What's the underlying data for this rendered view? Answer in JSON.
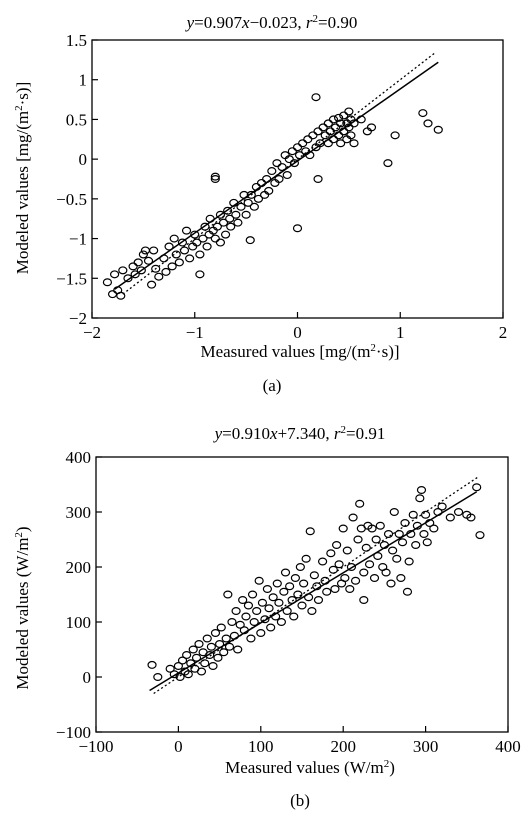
{
  "panels": [
    {
      "equation": {
        "y": "y",
        "eq1": "=0.907",
        "x": "x",
        "eq2": "−0.023,  ",
        "r": "r",
        "r_sup": "2",
        "eq3": "=0.90"
      },
      "ylabel": {
        "main": "Modeled values [mg/(m",
        "sup": "2",
        "rest": "·s)]"
      },
      "xlabel": {
        "main": "Measured values [mg/(m",
        "sup": "2",
        "rest": "·s)]"
      },
      "caption": "(a)"
    },
    {
      "equation": {
        "y": "y",
        "eq1": "=0.910",
        "x": "x",
        "eq2": "+7.340,  ",
        "r": "r",
        "r_sup": "2",
        "eq3": "=0.91"
      },
      "ylabel": {
        "main": "Modeled values (W/m",
        "sup": "2",
        "rest": ")"
      },
      "xlabel": {
        "main": "Measured values (W/m",
        "sup": "2",
        "rest": ")"
      },
      "caption": "(b)"
    }
  ],
  "chart_data": [
    {
      "type": "scatter",
      "xlim": [
        -2,
        2
      ],
      "ylim": [
        -2,
        1.5
      ],
      "x_ticks": [
        -2,
        -1,
        0,
        1,
        2
      ],
      "y_ticks": [
        -2,
        -1.5,
        -1,
        -0.5,
        0,
        0.5,
        1,
        1.5
      ],
      "x_tick_labels": [
        "−2",
        "−1",
        "0",
        "1",
        "2"
      ],
      "y_tick_labels": [
        "−2",
        "−1.5",
        "−1",
        "−0.5",
        "0",
        "0.5",
        "1",
        "1.5"
      ],
      "fit_line": {
        "slope": 0.907,
        "intercept": -0.023,
        "x_range": [
          -1.78,
          1.37
        ],
        "style": "solid"
      },
      "one_to_one_line": {
        "x_range": [
          -1.7,
          1.33
        ],
        "style": "dotted"
      },
      "marker": "open-circle",
      "grid": false,
      "points": [
        [
          -1.85,
          -1.55
        ],
        [
          -1.8,
          -1.7
        ],
        [
          -1.75,
          -1.65
        ],
        [
          -1.78,
          -1.45
        ],
        [
          -1.72,
          -1.72
        ],
        [
          -1.7,
          -1.4
        ],
        [
          -1.65,
          -1.5
        ],
        [
          -1.6,
          -1.35
        ],
        [
          -1.58,
          -1.45
        ],
        [
          -1.55,
          -1.3
        ],
        [
          -1.52,
          -1.4
        ],
        [
          -1.5,
          -1.2
        ],
        [
          -1.48,
          -1.15
        ],
        [
          -1.45,
          -1.28
        ],
        [
          -1.42,
          -1.58
        ],
        [
          -1.4,
          -1.15
        ],
        [
          -1.38,
          -1.38
        ],
        [
          -1.35,
          -1.48
        ],
        [
          -1.3,
          -1.25
        ],
        [
          -1.28,
          -1.42
        ],
        [
          -1.25,
          -1.1
        ],
        [
          -1.22,
          -1.35
        ],
        [
          -1.2,
          -1.0
        ],
        [
          -1.18,
          -1.2
        ],
        [
          -1.15,
          -1.3
        ],
        [
          -1.12,
          -1.05
        ],
        [
          -1.1,
          -1.15
        ],
        [
          -1.08,
          -0.9
        ],
        [
          -1.05,
          -1.25
        ],
        [
          -1.02,
          -1.1
        ],
        [
          -1.0,
          -0.95
        ],
        [
          -0.98,
          -1.05
        ],
        [
          -0.95,
          -1.45
        ],
        [
          -0.95,
          -1.2
        ],
        [
          -0.92,
          -1.0
        ],
        [
          -0.9,
          -0.85
        ],
        [
          -0.88,
          -1.1
        ],
        [
          -0.86,
          -0.95
        ],
        [
          -0.85,
          -0.75
        ],
        [
          -0.82,
          -0.9
        ],
        [
          -0.8,
          -0.25
        ],
        [
          -0.8,
          -0.22
        ],
        [
          -0.8,
          -1.0
        ],
        [
          -0.78,
          -0.85
        ],
        [
          -0.75,
          -0.7
        ],
        [
          -0.75,
          -1.05
        ],
        [
          -0.72,
          -0.8
        ],
        [
          -0.7,
          -0.95
        ],
        [
          -0.68,
          -0.65
        ],
        [
          -0.66,
          -0.75
        ],
        [
          -0.65,
          -0.85
        ],
        [
          -0.62,
          -0.55
        ],
        [
          -0.6,
          -0.7
        ],
        [
          -0.58,
          -0.8
        ],
        [
          -0.55,
          -0.6
        ],
        [
          -0.52,
          -0.45
        ],
        [
          -0.5,
          -0.7
        ],
        [
          -0.48,
          -0.55
        ],
        [
          -0.46,
          -1.02
        ],
        [
          -0.45,
          -0.45
        ],
        [
          -0.42,
          -0.6
        ],
        [
          -0.4,
          -0.35
        ],
        [
          -0.38,
          -0.5
        ],
        [
          -0.35,
          -0.3
        ],
        [
          -0.32,
          -0.45
        ],
        [
          -0.3,
          -0.25
        ],
        [
          -0.28,
          -0.4
        ],
        [
          -0.25,
          -0.15
        ],
        [
          -0.22,
          -0.3
        ],
        [
          -0.2,
          -0.05
        ],
        [
          -0.18,
          -0.25
        ],
        [
          -0.15,
          -0.1
        ],
        [
          -0.12,
          0.05
        ],
        [
          -0.1,
          -0.2
        ],
        [
          -0.08,
          0.0
        ],
        [
          -0.05,
          0.1
        ],
        [
          -0.03,
          -0.05
        ],
        [
          0.0,
          0.15
        ],
        [
          0.0,
          -0.87
        ],
        [
          0.02,
          0.05
        ],
        [
          0.05,
          0.2
        ],
        [
          0.08,
          0.1
        ],
        [
          0.1,
          0.25
        ],
        [
          0.12,
          0.05
        ],
        [
          0.15,
          0.3
        ],
        [
          0.18,
          0.15
        ],
        [
          0.18,
          0.78
        ],
        [
          0.2,
          0.35
        ],
        [
          0.2,
          -0.25
        ],
        [
          0.22,
          0.2
        ],
        [
          0.25,
          0.4
        ],
        [
          0.27,
          0.3
        ],
        [
          0.3,
          0.45
        ],
        [
          0.3,
          0.2
        ],
        [
          0.32,
          0.35
        ],
        [
          0.35,
          0.5
        ],
        [
          0.35,
          0.25
        ],
        [
          0.37,
          0.4
        ],
        [
          0.4,
          0.3
        ],
        [
          0.4,
          0.52
        ],
        [
          0.42,
          0.45
        ],
        [
          0.42,
          0.2
        ],
        [
          0.45,
          0.35
        ],
        [
          0.45,
          0.55
        ],
        [
          0.48,
          0.45
        ],
        [
          0.48,
          0.25
        ],
        [
          0.5,
          0.4
        ],
        [
          0.5,
          0.6
        ],
        [
          0.52,
          0.3
        ],
        [
          0.52,
          0.5
        ],
        [
          0.55,
          0.2
        ],
        [
          0.55,
          0.45
        ],
        [
          0.62,
          0.5
        ],
        [
          0.68,
          0.35
        ],
        [
          0.72,
          0.4
        ],
        [
          0.88,
          -0.05
        ],
        [
          0.95,
          0.3
        ],
        [
          1.22,
          0.58
        ],
        [
          1.27,
          0.45
        ],
        [
          1.37,
          0.37
        ]
      ]
    },
    {
      "type": "scatter",
      "xlim": [
        -100,
        400
      ],
      "ylim": [
        -100,
        400
      ],
      "x_ticks": [
        -100,
        0,
        100,
        200,
        300,
        400
      ],
      "y_ticks": [
        -100,
        0,
        100,
        200,
        300,
        400
      ],
      "x_tick_labels": [
        "−100",
        "0",
        "100",
        "200",
        "300",
        "400"
      ],
      "y_tick_labels": [
        "−100",
        "0",
        "100",
        "200",
        "300",
        "400"
      ],
      "fit_line": {
        "slope": 0.91,
        "intercept": 7.34,
        "x_range": [
          -35,
          362
        ],
        "style": "solid"
      },
      "one_to_one_line": {
        "x_range": [
          -30,
          365
        ],
        "style": "dotted"
      },
      "marker": "open-circle",
      "grid": false,
      "points": [
        [
          -32,
          22
        ],
        [
          -25,
          0
        ],
        [
          -10,
          15
        ],
        [
          -5,
          5
        ],
        [
          0,
          20
        ],
        [
          2,
          0
        ],
        [
          5,
          30
        ],
        [
          8,
          10
        ],
        [
          10,
          40
        ],
        [
          12,
          5
        ],
        [
          15,
          25
        ],
        [
          18,
          50
        ],
        [
          20,
          15
        ],
        [
          22,
          35
        ],
        [
          25,
          60
        ],
        [
          28,
          10
        ],
        [
          30,
          45
        ],
        [
          32,
          25
        ],
        [
          35,
          70
        ],
        [
          38,
          40
        ],
        [
          40,
          55
        ],
        [
          42,
          20
        ],
        [
          45,
          80
        ],
        [
          48,
          35
        ],
        [
          50,
          60
        ],
        [
          52,
          90
        ],
        [
          55,
          45
        ],
        [
          58,
          70
        ],
        [
          60,
          150
        ],
        [
          62,
          55
        ],
        [
          65,
          100
        ],
        [
          68,
          75
        ],
        [
          70,
          120
        ],
        [
          72,
          50
        ],
        [
          75,
          95
        ],
        [
          78,
          140
        ],
        [
          80,
          85
        ],
        [
          82,
          110
        ],
        [
          85,
          130
        ],
        [
          88,
          70
        ],
        [
          90,
          150
        ],
        [
          92,
          100
        ],
        [
          95,
          120
        ],
        [
          98,
          175
        ],
        [
          100,
          80
        ],
        [
          102,
          135
        ],
        [
          105,
          105
        ],
        [
          108,
          160
        ],
        [
          110,
          125
        ],
        [
          112,
          90
        ],
        [
          115,
          145
        ],
        [
          118,
          110
        ],
        [
          120,
          170
        ],
        [
          122,
          135
        ],
        [
          125,
          100
        ],
        [
          128,
          155
        ],
        [
          130,
          190
        ],
        [
          132,
          120
        ],
        [
          135,
          165
        ],
        [
          138,
          140
        ],
        [
          140,
          110
        ],
        [
          142,
          180
        ],
        [
          145,
          150
        ],
        [
          148,
          200
        ],
        [
          150,
          130
        ],
        [
          152,
          170
        ],
        [
          155,
          215
        ],
        [
          158,
          145
        ],
        [
          160,
          265
        ],
        [
          162,
          120
        ],
        [
          165,
          185
        ],
        [
          168,
          165
        ],
        [
          170,
          140
        ],
        [
          175,
          210
        ],
        [
          178,
          175
        ],
        [
          180,
          155
        ],
        [
          185,
          225
        ],
        [
          188,
          195
        ],
        [
          190,
          160
        ],
        [
          192,
          240
        ],
        [
          195,
          205
        ],
        [
          198,
          170
        ],
        [
          200,
          270
        ],
        [
          202,
          180
        ],
        [
          205,
          230
        ],
        [
          208,
          160
        ],
        [
          210,
          200
        ],
        [
          212,
          290
        ],
        [
          215,
          175
        ],
        [
          218,
          250
        ],
        [
          220,
          315
        ],
        [
          222,
          270
        ],
        [
          225,
          140
        ],
        [
          225,
          190
        ],
        [
          228,
          235
        ],
        [
          230,
          275
        ],
        [
          232,
          205
        ],
        [
          235,
          270
        ],
        [
          238,
          180
        ],
        [
          240,
          250
        ],
        [
          242,
          220
        ],
        [
          245,
          275
        ],
        [
          248,
          200
        ],
        [
          250,
          240
        ],
        [
          252,
          190
        ],
        [
          255,
          260
        ],
        [
          258,
          170
        ],
        [
          260,
          230
        ],
        [
          262,
          300
        ],
        [
          265,
          215
        ],
        [
          268,
          260
        ],
        [
          270,
          180
        ],
        [
          272,
          245
        ],
        [
          275,
          280
        ],
        [
          278,
          155
        ],
        [
          280,
          210
        ],
        [
          282,
          260
        ],
        [
          285,
          295
        ],
        [
          288,
          240
        ],
        [
          290,
          275
        ],
        [
          293,
          325
        ],
        [
          295,
          340
        ],
        [
          298,
          260
        ],
        [
          300,
          295
        ],
        [
          302,
          245
        ],
        [
          305,
          280
        ],
        [
          310,
          270
        ],
        [
          315,
          300
        ],
        [
          320,
          310
        ],
        [
          330,
          290
        ],
        [
          340,
          300
        ],
        [
          350,
          295
        ],
        [
          355,
          290
        ],
        [
          362,
          345
        ],
        [
          366,
          258
        ]
      ]
    }
  ]
}
